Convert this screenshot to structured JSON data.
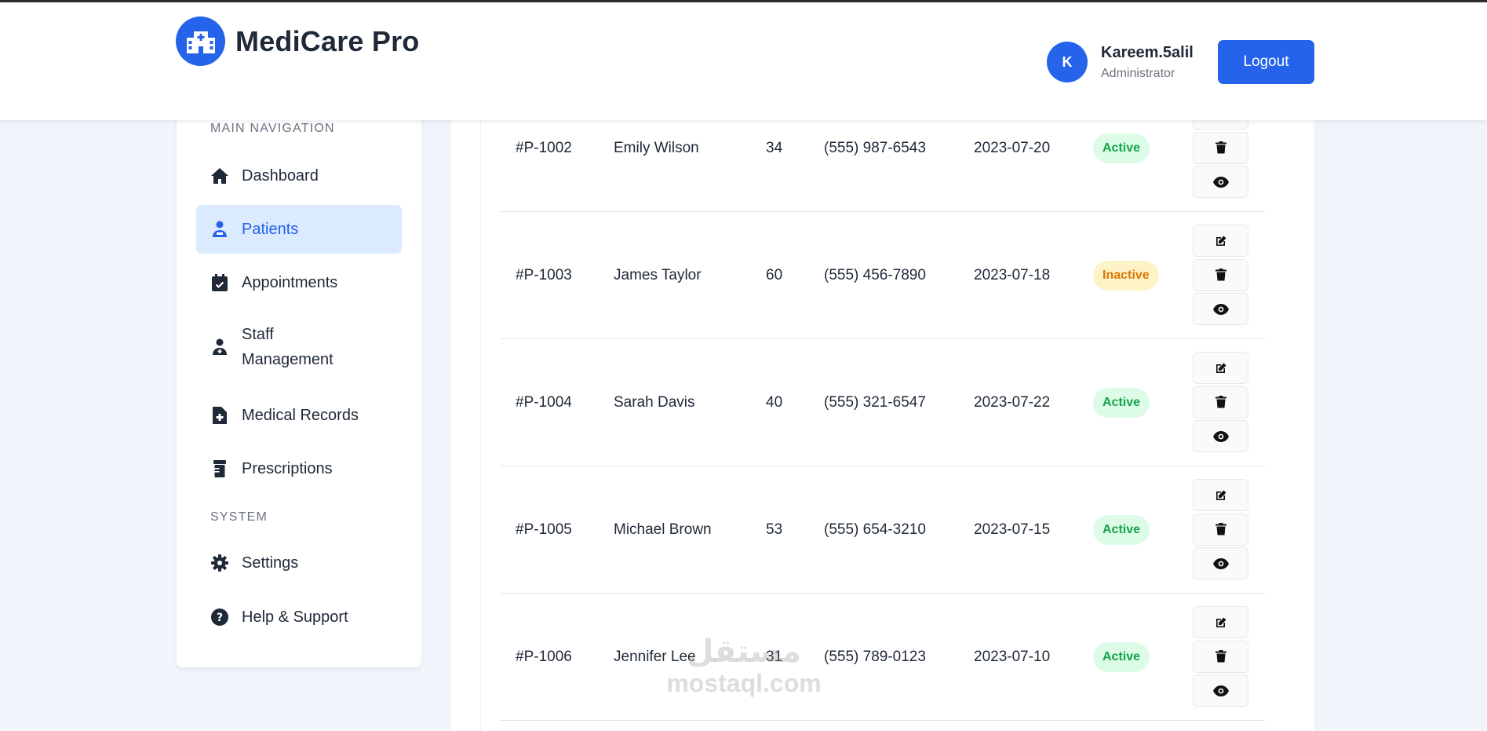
{
  "app": {
    "title": "MediCare Pro"
  },
  "header": {
    "user": {
      "initial": "K",
      "name": "Kareem.5alil",
      "role": "Administrator"
    },
    "logout_label": "Logout"
  },
  "sidebar": {
    "main_section": "MAIN NAVIGATION",
    "system_section": "SYSTEM",
    "items": [
      {
        "label": "Dashboard",
        "icon": "home-icon"
      },
      {
        "label": "Patients",
        "icon": "patient-icon",
        "active": true
      },
      {
        "label": "Appointments",
        "icon": "calendar-check-icon"
      },
      {
        "label": "Staff\nManagement",
        "icon": "user-doctor-icon"
      },
      {
        "label": "Medical Records",
        "icon": "file-medical-icon"
      },
      {
        "label": "Prescriptions",
        "icon": "prescription-bottle-icon"
      }
    ],
    "system_items": [
      {
        "label": "Settings",
        "icon": "gear-icon"
      },
      {
        "label": "Help & Support",
        "icon": "question-circle-icon"
      }
    ]
  },
  "patients": {
    "rows": [
      {
        "id": "#P-1002",
        "name": "Emily Wilson",
        "age": "34",
        "phone": "(555) 987-6543",
        "date": "2023-07-20",
        "status": "Active"
      },
      {
        "id": "#P-1003",
        "name": "James Taylor",
        "age": "60",
        "phone": "(555) 456-7890",
        "date": "2023-07-18",
        "status": "Inactive"
      },
      {
        "id": "#P-1004",
        "name": "Sarah Davis",
        "age": "40",
        "phone": "(555) 321-6547",
        "date": "2023-07-22",
        "status": "Active"
      },
      {
        "id": "#P-1005",
        "name": "Michael Brown",
        "age": "53",
        "phone": "(555) 654-3210",
        "date": "2023-07-15",
        "status": "Active"
      },
      {
        "id": "#P-1006",
        "name": "Jennifer Lee",
        "age": "31",
        "phone": "(555) 789-0123",
        "date": "2023-07-10",
        "status": "Active"
      }
    ]
  },
  "watermark": {
    "arabic": "مستقل",
    "latin": "mostaql.com"
  },
  "colors": {
    "primary": "#2563eb",
    "active_bg": "#dcfce7",
    "active_fg": "#16a34a",
    "inactive_bg": "#fef3c7",
    "inactive_fg": "#d97706"
  }
}
